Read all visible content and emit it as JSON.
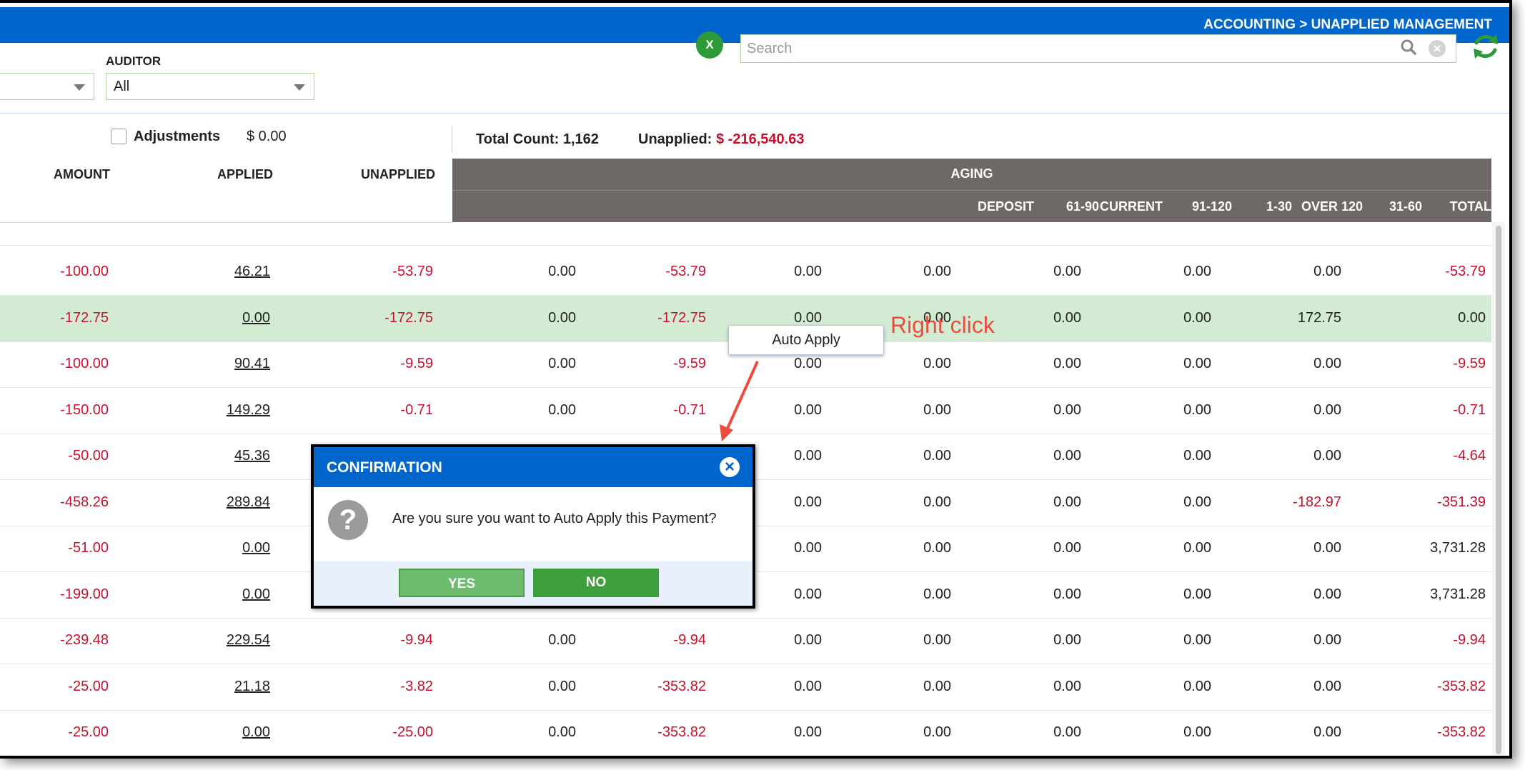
{
  "header": {
    "breadcrumb": "ACCOUNTING > UNAPPLIED MANAGEMENT"
  },
  "filters": {
    "auditor_label": "AUDITOR",
    "auditor_value": "All",
    "search_placeholder": "Search"
  },
  "summary": {
    "adjustments_label": "Adjustments",
    "adjustments_value": "$ 0.00",
    "adjustments_checked": false,
    "total_count": "Total Count: 1,162",
    "unapplied_label": "Unapplied:",
    "unapplied_value": "$ -216,540.63"
  },
  "table": {
    "aging_label": "AGING",
    "headers": {
      "amount": "AMOUNT",
      "applied": "APPLIED",
      "unapplied": "UNAPPLIED",
      "deposit": "DEPOSIT",
      "current": "CURRENT",
      "d1_30": "1-30",
      "d31_60": "31-60",
      "d61_90": "61-90",
      "d91_120": "91-120",
      "over_120": "OVER 120",
      "total": "TOTAL"
    },
    "rows": [
      [
        "-100.00",
        "46.21",
        "-53.79",
        "0.00",
        "-53.79",
        "0.00",
        "0.00",
        "0.00",
        "0.00",
        "0.00",
        "-53.79"
      ],
      [
        "-172.75",
        "0.00",
        "-172.75",
        "0.00",
        "-172.75",
        "0.00",
        "0.00",
        "0.00",
        "0.00",
        "172.75",
        "0.00"
      ],
      [
        "-100.00",
        "90.41",
        "-9.59",
        "0.00",
        "-9.59",
        "0.00",
        "0.00",
        "0.00",
        "0.00",
        "0.00",
        "-9.59"
      ],
      [
        "-150.00",
        "149.29",
        "-0.71",
        "0.00",
        "-0.71",
        "0.00",
        "0.00",
        "0.00",
        "0.00",
        "0.00",
        "-0.71"
      ],
      [
        "-50.00",
        "45.36",
        "",
        "",
        "",
        "0.00",
        "0.00",
        "0.00",
        "0.00",
        "0.00",
        "-4.64"
      ],
      [
        "-458.26",
        "289.84",
        "",
        "",
        "",
        "0.00",
        "0.00",
        "0.00",
        "0.00",
        "-182.97",
        "-351.39"
      ],
      [
        "-51.00",
        "0.00",
        "",
        "",
        "",
        "0.00",
        "0.00",
        "0.00",
        "0.00",
        "0.00",
        "3,731.28"
      ],
      [
        "-199.00",
        "0.00",
        "",
        "",
        "",
        "0.00",
        "0.00",
        "0.00",
        "0.00",
        "0.00",
        "3,731.28"
      ],
      [
        "-239.48",
        "229.54",
        "-9.94",
        "0.00",
        "-9.94",
        "0.00",
        "0.00",
        "0.00",
        "0.00",
        "0.00",
        "-9.94"
      ],
      [
        "-25.00",
        "21.18",
        "-3.82",
        "0.00",
        "-353.82",
        "0.00",
        "0.00",
        "0.00",
        "0.00",
        "0.00",
        "-353.82"
      ],
      [
        "-25.00",
        "0.00",
        "-25.00",
        "0.00",
        "-353.82",
        "0.00",
        "0.00",
        "0.00",
        "0.00",
        "0.00",
        "-353.82"
      ]
    ],
    "selected_row": 1
  },
  "context_menu": {
    "item": "Auto Apply"
  },
  "annotation": {
    "text": "Right click",
    "color": "#ee4c3c"
  },
  "dialog": {
    "title": "CONFIRMATION",
    "message": "Are you sure you want to Auto Apply this Payment?",
    "yes_label": "YES",
    "no_label": "NO"
  },
  "colors": {
    "brand": "#0066cc",
    "negative": "#c8102e",
    "header_grey": "#6e6867",
    "selected_row": "#d3ebd3",
    "excel": "#2e9a3a"
  },
  "icons": [
    "excel-icon",
    "search-icon",
    "clear-icon",
    "refresh-icon",
    "close-icon",
    "question-icon",
    "chevron-down-icon"
  ]
}
